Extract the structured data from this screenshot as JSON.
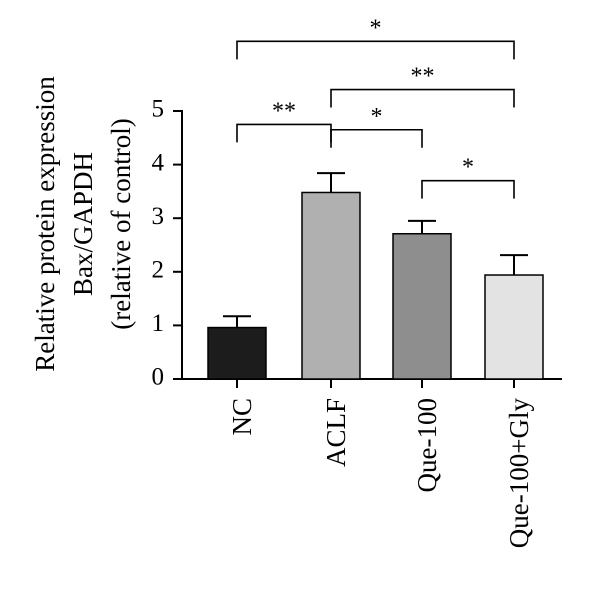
{
  "chart_data": {
    "type": "bar",
    "ylabel_lines": [
      "Relative protein expression",
      "Bax/GAPDH",
      "(relative of control)"
    ],
    "categories": [
      "NC",
      "ACLF",
      "Que-100",
      "Que-100+Gly"
    ],
    "values": [
      0.96,
      3.48,
      2.71,
      1.94
    ],
    "errors": [
      0.21,
      0.36,
      0.24,
      0.37
    ],
    "bar_colors": [
      "#1c1c1c",
      "#b0b0b0",
      "#8e8e8e",
      "#e3e3e3"
    ],
    "yticks": [
      "0",
      "1",
      "2",
      "3",
      "4",
      "5"
    ],
    "ylim": [
      0,
      5
    ],
    "grid": false,
    "significance": [
      {
        "from": 0,
        "to": 1,
        "label": "**",
        "level": 4.75
      },
      {
        "from": 1,
        "to": 2,
        "label": "*",
        "level": 4.65
      },
      {
        "from": 2,
        "to": 3,
        "label": "*",
        "level": 3.7
      },
      {
        "from": 1,
        "to": 3,
        "label": "**",
        "level": 5.4
      },
      {
        "from": 0,
        "to": 3,
        "label": "*",
        "level": 6.3
      }
    ]
  }
}
